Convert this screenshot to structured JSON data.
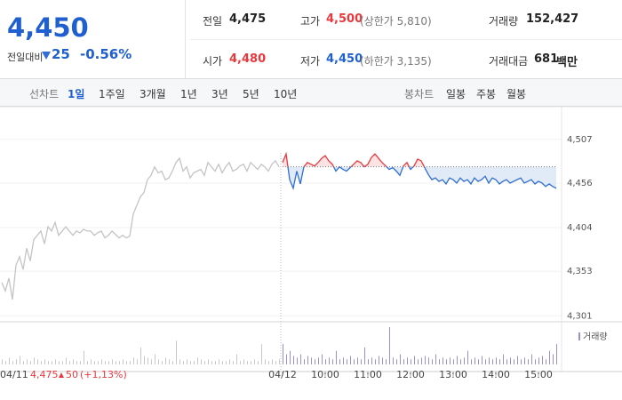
{
  "quote": {
    "price": "4,450",
    "change_label": "전일대비",
    "change": "25",
    "change_rate": "-0.56%",
    "stats": [
      {
        "label": "전일",
        "value": "4,475"
      },
      {
        "label": "고가",
        "value": "4,500",
        "note": "(상한가 5,810)"
      },
      {
        "label": "거래량",
        "value": "152,427"
      },
      {
        "label": "시가",
        "value": "4,480"
      },
      {
        "label": "저가",
        "value": "4,450",
        "note": "(하한가 3,135)"
      },
      {
        "label": "거래대금",
        "value": "681",
        "unit": "백만"
      }
    ]
  },
  "line_tabs": {
    "label": "선차트",
    "items": [
      "1일",
      "1주일",
      "3개월",
      "1년",
      "3년",
      "5년",
      "10년"
    ]
  },
  "candle_tabs": {
    "label": "봉차트",
    "items": [
      "일봉",
      "주봉",
      "월봉"
    ]
  },
  "footer": {
    "price": "4,475",
    "change": "50",
    "rate": "(+1,13%)"
  },
  "chart_data": [
    {
      "type": "line",
      "baseline": 4475,
      "categories": [
        "04/11",
        null,
        null,
        null,
        null,
        null,
        null,
        null,
        null,
        null,
        null,
        null,
        null,
        null,
        null,
        null,
        null,
        null,
        null,
        null,
        null,
        null,
        null,
        null,
        null,
        null,
        null,
        null,
        null,
        null,
        null,
        null,
        null,
        null,
        null,
        null,
        null,
        null,
        null,
        null,
        null,
        null,
        null,
        null,
        null,
        null,
        null,
        null,
        null,
        null,
        null,
        null,
        null,
        null,
        null,
        null,
        null,
        null,
        null,
        null,
        null,
        null,
        null,
        null,
        null,
        null,
        null,
        null,
        null,
        null,
        null,
        null,
        null,
        null,
        null,
        null,
        null,
        null,
        null,
        "04/12",
        null,
        null,
        null,
        null,
        null,
        null,
        null,
        null,
        null,
        null,
        null,
        "10:00",
        null,
        null,
        null,
        null,
        null,
        null,
        null,
        null,
        null,
        null,
        null,
        "11:00",
        null,
        null,
        null,
        null,
        null,
        null,
        null,
        null,
        null,
        null,
        null,
        "12:00",
        null,
        null,
        null,
        null,
        null,
        null,
        null,
        null,
        null,
        null,
        null,
        "13:00",
        null,
        null,
        null,
        null,
        null,
        null,
        null,
        null,
        null,
        null,
        null,
        "14:00",
        null,
        null,
        null,
        null,
        null,
        null,
        null,
        null,
        null,
        null,
        null,
        "15:00",
        null,
        null,
        null,
        null,
        null
      ],
      "ylim": [
        4294,
        4538
      ],
      "yticks": [
        {
          "value": 4301,
          "label": "4,301"
        },
        {
          "value": 4353,
          "label": "4,353"
        },
        {
          "value": 4404,
          "label": "4,404"
        },
        {
          "value": 4456,
          "label": "4,456"
        },
        {
          "value": 4507,
          "label": "4,507"
        }
      ],
      "grid": true,
      "series": [
        {
          "color": "#c4c4c4",
          "values": [
            4340,
            4330,
            4345,
            4320,
            4360,
            4370,
            4355,
            4380,
            4365,
            4390,
            4395,
            4400,
            4385,
            4405,
            4400,
            4410,
            4395,
            4400,
            4405,
            4400,
            4395,
            4400,
            4398,
            4402,
            4400,
            4400,
            4395,
            4398,
            4400,
            4392,
            4395,
            4400,
            4396,
            4392,
            4395,
            4392,
            4394,
            4420,
            4430,
            4440,
            4445,
            4460,
            4465,
            4475,
            4468,
            4470,
            4460,
            4462,
            4470,
            4480,
            4485,
            4470,
            4475,
            4462,
            4468,
            4470,
            4472,
            4465,
            4480,
            4475,
            4470,
            4478,
            4468,
            4475,
            4480,
            4470,
            4472,
            4476,
            4478,
            4470,
            4480,
            4476,
            4472,
            4478,
            4475,
            4470,
            4478,
            4482,
            4475,
            null,
            null,
            null,
            null,
            null,
            null,
            null,
            null,
            null,
            null,
            null,
            null,
            null,
            null,
            null,
            null,
            null,
            null,
            null,
            null,
            null,
            null,
            null,
            null,
            null,
            null,
            null,
            null,
            null,
            null,
            null,
            null,
            null,
            null,
            null,
            null,
            null,
            null,
            null,
            null,
            null,
            null,
            null,
            null,
            null,
            null,
            null,
            null,
            null,
            null,
            null,
            null,
            null,
            null,
            null,
            null,
            null,
            null,
            null,
            null,
            null,
            null,
            null,
            null,
            null,
            null,
            null,
            null,
            null,
            null,
            null,
            null,
            null,
            null,
            null,
            null,
            null,
            null
          ]
        },
        {
          "color": "#e8393d",
          "down_color": "#2f6ed6",
          "values": [
            null,
            null,
            null,
            null,
            null,
            null,
            null,
            null,
            null,
            null,
            null,
            null,
            null,
            null,
            null,
            null,
            null,
            null,
            null,
            null,
            null,
            null,
            null,
            null,
            null,
            null,
            null,
            null,
            null,
            null,
            null,
            null,
            null,
            null,
            null,
            null,
            null,
            null,
            null,
            null,
            null,
            null,
            null,
            null,
            null,
            null,
            null,
            null,
            null,
            null,
            null,
            null,
            null,
            null,
            null,
            null,
            null,
            null,
            null,
            null,
            null,
            null,
            null,
            null,
            null,
            null,
            null,
            null,
            null,
            null,
            null,
            null,
            null,
            null,
            null,
            null,
            null,
            null,
            null,
            4480,
            4490,
            4460,
            4450,
            4470,
            4455,
            4475,
            4480,
            4478,
            4476,
            4480,
            4485,
            4488,
            4482,
            4478,
            4470,
            4475,
            4472,
            4470,
            4474,
            4478,
            4482,
            4480,
            4475,
            4478,
            4486,
            4490,
            4485,
            4480,
            4476,
            4472,
            4474,
            4470,
            4465,
            4476,
            4480,
            4472,
            4476,
            4484,
            4482,
            4474,
            4466,
            4460,
            4462,
            4458,
            4460,
            4455,
            4462,
            4460,
            4456,
            4462,
            4458,
            4460,
            4455,
            4462,
            4458,
            4460,
            4464,
            4456,
            4462,
            4460,
            4455,
            4458,
            4460,
            4456,
            4458,
            4460,
            4462,
            4456,
            4458,
            4460,
            4455,
            4458,
            4456,
            4452,
            4455,
            4452,
            4450
          ]
        }
      ]
    },
    {
      "type": "bar",
      "series": [
        {
          "name": "거래량",
          "color": "#9a8fd0",
          "values": [
            3,
            2,
            4,
            2,
            3,
            5,
            2,
            3,
            2,
            4,
            3,
            2,
            3,
            2,
            2,
            3,
            2,
            2,
            4,
            2,
            3,
            2,
            2,
            8,
            2,
            3,
            2,
            2,
            3,
            2,
            2,
            3,
            2,
            2,
            3,
            2,
            2,
            4,
            3,
            10,
            5,
            4,
            3,
            6,
            3,
            2,
            4,
            3,
            2,
            14,
            3,
            2,
            3,
            2,
            2,
            4,
            3,
            2,
            3,
            2,
            2,
            3,
            2,
            2,
            3,
            2,
            6,
            2,
            3,
            2,
            2,
            3,
            2,
            12,
            3,
            2,
            3,
            2,
            3,
            12,
            6,
            8,
            5,
            4,
            6,
            3,
            5,
            4,
            3,
            4,
            6,
            3,
            4,
            3,
            8,
            3,
            4,
            3,
            5,
            3,
            4,
            3,
            10,
            3,
            4,
            3,
            5,
            4,
            3,
            22,
            4,
            3,
            6,
            3,
            4,
            3,
            5,
            3,
            4,
            5,
            4,
            3,
            6,
            3,
            4,
            3,
            4,
            3,
            5,
            3,
            4,
            8,
            3,
            4,
            3,
            5,
            3,
            4,
            3,
            4,
            3,
            6,
            3,
            4,
            3,
            5,
            3,
            4,
            3,
            6,
            3,
            4,
            5,
            3,
            8,
            6,
            12
          ]
        }
      ]
    }
  ]
}
